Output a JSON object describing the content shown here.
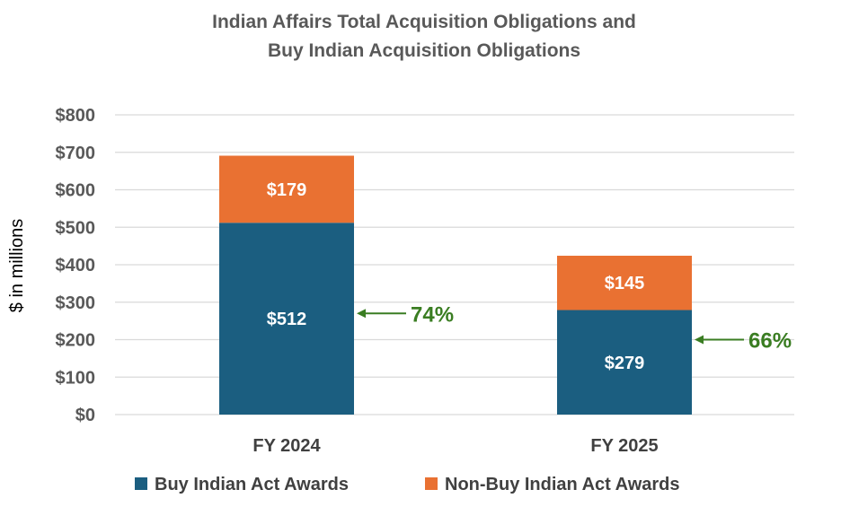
{
  "chart_data": {
    "type": "bar",
    "stacked": true,
    "title": [
      "Indian Affairs Total Acquisition Obligations and",
      "Buy Indian Acquisition Obligations"
    ],
    "ylabel": "$ in millions",
    "ylim": [
      0,
      800
    ],
    "yticks": [
      0,
      100,
      200,
      300,
      400,
      500,
      600,
      700,
      800
    ],
    "ytick_labels": [
      "$0",
      "$100",
      "$200",
      "$300",
      "$400",
      "$500",
      "$600",
      "$700",
      "$800"
    ],
    "categories": [
      "FY 2024",
      "FY 2025"
    ],
    "series": [
      {
        "name": "Buy Indian Act Awards",
        "color": "#1b5e80",
        "values": [
          512,
          279
        ],
        "labels": [
          "$512",
          "$279"
        ]
      },
      {
        "name": "Non-Buy Indian Act Awards",
        "color": "#e97132",
        "values": [
          179,
          145
        ],
        "labels": [
          "$179",
          "$145"
        ]
      }
    ],
    "annotations": [
      {
        "category": "FY 2024",
        "text": "74%",
        "target_value": 270,
        "color": "#3a7d22"
      },
      {
        "category": "FY 2025",
        "text": "66%",
        "target_value": 200,
        "color": "#3a7d22"
      }
    ],
    "grid": true,
    "gridline_color": "#d9d9d9",
    "legend_position": "bottom"
  }
}
